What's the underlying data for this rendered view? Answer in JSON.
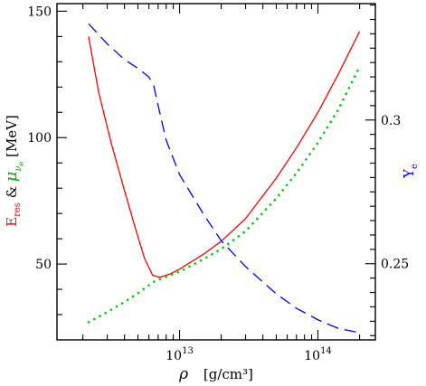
{
  "chart_data": {
    "type": "line",
    "xscale": "log",
    "xlim": [
      1300000000000.0,
      260000000000000.0
    ],
    "xticks_major": [
      {
        "value": 10000000000000.0,
        "base": "10",
        "exp": "13"
      },
      {
        "value": 100000000000000.0,
        "base": "10",
        "exp": "14"
      }
    ],
    "xlabel": {
      "rho": "ρ",
      "units": "[g/cm³]"
    },
    "yleft": {
      "lim": [
        20,
        153
      ],
      "ticks": [
        "50",
        "100",
        "150"
      ],
      "tick_values": [
        50,
        100,
        150
      ],
      "label": {
        "e_main": "E",
        "e_sub": "res",
        "amp": " & ",
        "mu": "μ",
        "nu": "ν",
        "nu_sub": "e",
        "units": " [MeV]"
      }
    },
    "yright": {
      "lim": [
        0.2235,
        0.3405
      ],
      "ticks": [
        "0.25",
        "0.3"
      ],
      "tick_values": [
        0.25,
        0.3
      ],
      "label": {
        "main": "Y",
        "sub": "e"
      }
    },
    "series": [
      {
        "axis": "left",
        "style": "solid",
        "color": "#ff0000",
        "points": [
          [
            2200000000000.0,
            140
          ],
          [
            2600000000000.0,
            118
          ],
          [
            3200000000000.0,
            98
          ],
          [
            4000000000000.0,
            79
          ],
          [
            4800000000000.0,
            64
          ],
          [
            5600000000000.0,
            52
          ],
          [
            6400000000000.0,
            45.5
          ],
          [
            7200000000000.0,
            44.8
          ],
          [
            8500000000000.0,
            46
          ],
          [
            10000000000000.0,
            48
          ],
          [
            15000000000000.0,
            54
          ],
          [
            20000000000000.0,
            59
          ],
          [
            30000000000000.0,
            68
          ],
          [
            50000000000000.0,
            84
          ],
          [
            70000000000000.0,
            96
          ],
          [
            100000000000000.0,
            110
          ],
          [
            140000000000000.0,
            125
          ],
          [
            200000000000000.0,
            142
          ]
        ]
      },
      {
        "axis": "left",
        "style": "dotted",
        "color": "#00cc00",
        "points": [
          [
            2200000000000.0,
            27
          ],
          [
            3000000000000.0,
            31
          ],
          [
            4000000000000.0,
            35
          ],
          [
            5000000000000.0,
            38.5
          ],
          [
            6500000000000.0,
            43
          ],
          [
            8000000000000.0,
            45
          ],
          [
            10000000000000.0,
            47
          ],
          [
            15000000000000.0,
            52
          ],
          [
            20000000000000.0,
            56
          ],
          [
            30000000000000.0,
            63
          ],
          [
            50000000000000.0,
            76
          ],
          [
            70000000000000.0,
            86
          ],
          [
            100000000000000.0,
            98
          ],
          [
            140000000000000.0,
            111
          ],
          [
            200000000000000.0,
            128
          ]
        ]
      },
      {
        "axis": "right",
        "style": "dashed",
        "color": "#0000ff",
        "points": [
          [
            2200000000000.0,
            0.3335
          ],
          [
            3000000000000.0,
            0.3265
          ],
          [
            4000000000000.0,
            0.321
          ],
          [
            5000000000000.0,
            0.318
          ],
          [
            6000000000000.0,
            0.315
          ],
          [
            6500000000000.0,
            0.312
          ],
          [
            7000000000000.0,
            0.305
          ],
          [
            8000000000000.0,
            0.293
          ],
          [
            10000000000000.0,
            0.281
          ],
          [
            15000000000000.0,
            0.267
          ],
          [
            20000000000000.0,
            0.258
          ],
          [
            30000000000000.0,
            0.249
          ],
          [
            50000000000000.0,
            0.2395
          ],
          [
            70000000000000.0,
            0.2345
          ],
          [
            100000000000000.0,
            0.2305
          ],
          [
            140000000000000.0,
            0.2275
          ],
          [
            200000000000000.0,
            0.226
          ]
        ]
      }
    ]
  }
}
